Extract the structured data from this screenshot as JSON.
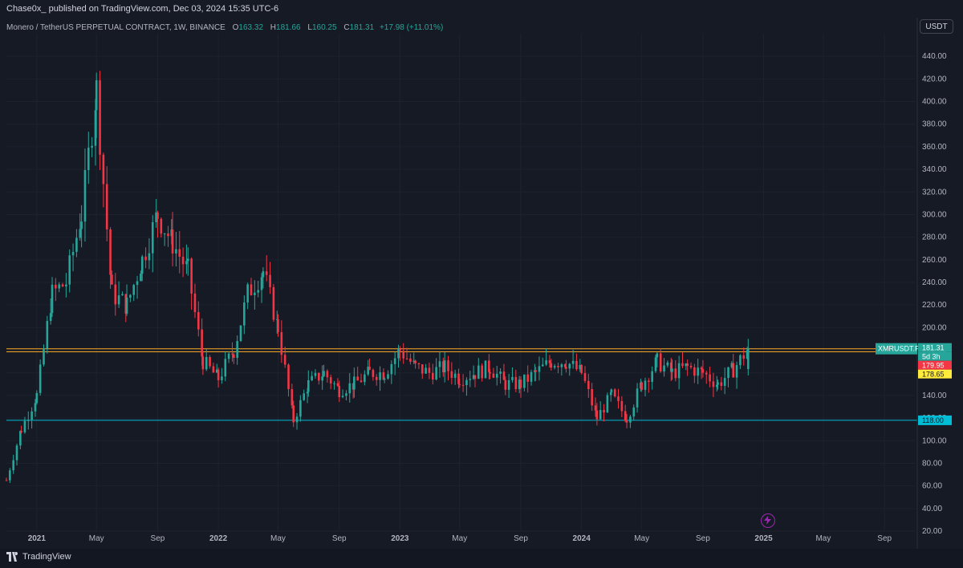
{
  "header": {
    "published_text": "Chase0x_ published on TradingView.com, Dec 03, 2024 15:35 UTC-6"
  },
  "legend": {
    "symbol": "Monero / TetherUS PERPETUAL CONTRACT, 1W, BINANCE",
    "o_label": "O",
    "o_value": "163.32",
    "h_label": "H",
    "h_value": "181.66",
    "l_label": "L",
    "l_value": "160.25",
    "c_label": "C",
    "c_value": "181.31",
    "change": "+17.98 (+11.01%)"
  },
  "currency": "USDT",
  "footer": {
    "brand": "TradingView"
  },
  "colors": {
    "background": "#161a25",
    "up": "#26a69a",
    "down": "#f23645",
    "resistance": "#f9a825",
    "support": "#00bcd4"
  },
  "icons": {
    "spark": "lightning-icon",
    "logo": "tradingview-logo-icon"
  },
  "chart_data": {
    "type": "candlestick",
    "symbol": "XMRUSDT.P",
    "timeframe": "1W",
    "y_axis": {
      "ticks": [
        20,
        40,
        60,
        80,
        100,
        120,
        140,
        160,
        180,
        200,
        220,
        240,
        260,
        280,
        300,
        320,
        340,
        360,
        380,
        400,
        420,
        440
      ],
      "tick_labels": [
        "20.00",
        "40.00",
        "60.00",
        "80.00",
        "100.00",
        "120.00",
        "140.00",
        "160.00",
        "180.00",
        "200.00",
        "220.00",
        "240.00",
        "260.00",
        "280.00",
        "300.00",
        "320.00",
        "340.00",
        "360.00",
        "380.00",
        "400.00",
        "420.00",
        "440.00"
      ],
      "ylim": [
        20,
        460
      ]
    },
    "x_axis": {
      "labels": [
        "2021",
        "May",
        "Sep",
        "2022",
        "May",
        "Sep",
        "2023",
        "May",
        "Sep",
        "2024",
        "May",
        "Sep",
        "2025",
        "May",
        "Sep"
      ],
      "bold_labels": [
        "2021",
        "2022",
        "2023",
        "2024",
        "2025"
      ]
    },
    "horizontal_lines": [
      {
        "value": 181.31,
        "color": "#f9a825",
        "style": "solid"
      },
      {
        "value": 178.65,
        "color": "#f9a825",
        "style": "solid"
      },
      {
        "value": 118.0,
        "color": "#00bcd4",
        "style": "solid"
      }
    ],
    "price_labels": [
      {
        "text": "XMRUSDT.P",
        "value": 181.31,
        "color": "#26a69a"
      },
      {
        "text": "181.31",
        "value": 181.31,
        "color": "#26a69a"
      },
      {
        "text": "5d 3h",
        "color": "#26a69a"
      },
      {
        "text": "179.95",
        "color": "#f23645"
      },
      {
        "text": "178.65",
        "value": 178.65,
        "color": "#ffeb3b"
      },
      {
        "text": "118.00",
        "value": 118.0,
        "color": "#00bcd4"
      }
    ],
    "close_path": [
      [
        "2020-11-01",
        65
      ],
      [
        "2020-12-01",
        110
      ],
      [
        "2021-01-01",
        140
      ],
      [
        "2021-02-01",
        230
      ],
      [
        "2021-03-01",
        240
      ],
      [
        "2021-04-01",
        300
      ],
      [
        "2021-05-01",
        410
      ],
      [
        "2021-06-01",
        230
      ],
      [
        "2021-07-01",
        220
      ],
      [
        "2021-08-01",
        260
      ],
      [
        "2021-09-01",
        300
      ],
      [
        "2021-10-01",
        275
      ],
      [
        "2021-11-01",
        250
      ],
      [
        "2021-12-01",
        170
      ],
      [
        "2022-01-01",
        155
      ],
      [
        "2022-02-01",
        180
      ],
      [
        "2022-03-01",
        230
      ],
      [
        "2022-04-01",
        250
      ],
      [
        "2022-05-01",
        200
      ],
      [
        "2022-06-01",
        118
      ],
      [
        "2022-07-01",
        150
      ],
      [
        "2022-08-01",
        160
      ],
      [
        "2022-09-01",
        145
      ],
      [
        "2022-10-01",
        150
      ],
      [
        "2022-11-01",
        160
      ],
      [
        "2022-12-01",
        160
      ],
      [
        "2023-01-01",
        180
      ],
      [
        "2023-02-01",
        165
      ],
      [
        "2023-03-01",
        160
      ],
      [
        "2023-04-01",
        165
      ],
      [
        "2023-05-01",
        155
      ],
      [
        "2023-06-01",
        160
      ],
      [
        "2023-07-01",
        165
      ],
      [
        "2023-08-01",
        150
      ],
      [
        "2023-09-01",
        150
      ],
      [
        "2023-10-01",
        160
      ],
      [
        "2023-11-01",
        170
      ],
      [
        "2023-12-01",
        170
      ],
      [
        "2024-01-01",
        160
      ],
      [
        "2024-02-01",
        120
      ],
      [
        "2024-03-01",
        140
      ],
      [
        "2024-04-01",
        120
      ],
      [
        "2024-05-01",
        150
      ],
      [
        "2024-06-01",
        170
      ],
      [
        "2024-07-01",
        160
      ],
      [
        "2024-08-01",
        165
      ],
      [
        "2024-09-01",
        160
      ],
      [
        "2024-10-01",
        150
      ],
      [
        "2024-11-01",
        163
      ],
      [
        "2024-12-01",
        181.31
      ]
    ]
  }
}
